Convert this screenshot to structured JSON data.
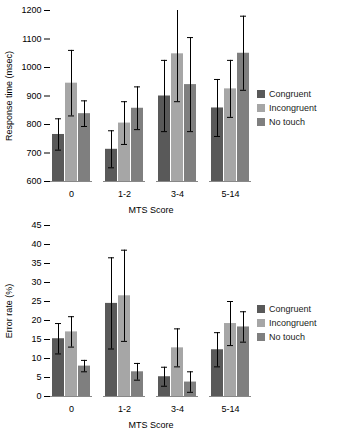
{
  "chart_data": [
    {
      "type": "bar",
      "x_label": "MTS Score",
      "y_label": "Response time (msec)",
      "categories": [
        "0",
        "1-2",
        "3-4",
        "5-14"
      ],
      "series": [
        {
          "name": "Congruent",
          "color": "#595959",
          "values": [
            765,
            713,
            900,
            858
          ],
          "errors": [
            55,
            65,
            125,
            100
          ]
        },
        {
          "name": "Incongruent",
          "color": "#a6a6a6",
          "values": [
            945,
            805,
            1048,
            925
          ],
          "errors": [
            115,
            75,
            168,
            100
          ]
        },
        {
          "name": "No touch",
          "color": "#7f7f7f",
          "values": [
            838,
            857,
            940,
            1050
          ],
          "errors": [
            45,
            75,
            165,
            130
          ]
        }
      ],
      "ylim": [
        600,
        1200
      ],
      "yticks": [
        600,
        700,
        800,
        900,
        1000,
        1100,
        1200
      ],
      "grid": false,
      "legend": "right"
    },
    {
      "type": "bar",
      "x_label": "MTS Score",
      "y_label": "Error rate (%)",
      "categories": [
        "0",
        "1-2",
        "3-4",
        "5-14"
      ],
      "series": [
        {
          "name": "Congruent",
          "color": "#595959",
          "values": [
            15.2,
            24.5,
            5.2,
            12.3
          ],
          "errors": [
            4,
            12,
            2.5,
            4.5
          ]
        },
        {
          "name": "Incongruent",
          "color": "#a6a6a6",
          "values": [
            17,
            26.5,
            12.8,
            19.2
          ],
          "errors": [
            4,
            12,
            5,
            5.8
          ]
        },
        {
          "name": "No touch",
          "color": "#7f7f7f",
          "values": [
            8,
            6.5,
            3.8,
            18.3
          ],
          "errors": [
            1.5,
            2.2,
            2.7,
            4
          ]
        }
      ],
      "ylim": [
        0,
        45
      ],
      "yticks": [
        0,
        5,
        10,
        15,
        20,
        25,
        30,
        35,
        40,
        45
      ],
      "grid": false,
      "legend": "right"
    }
  ]
}
